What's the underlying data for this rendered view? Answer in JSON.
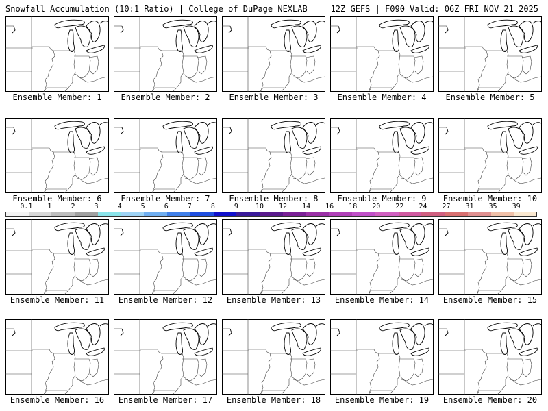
{
  "header": {
    "title": "Snowfall Accumulation (10:1 Ratio) | College of DuPage NEXLAB",
    "run_info": "12Z GEFS | F090 Valid: 06Z FRI NOV 21 2025"
  },
  "members": [
    {
      "label": "Ensemble Member: 1"
    },
    {
      "label": "Ensemble Member: 2"
    },
    {
      "label": "Ensemble Member: 3"
    },
    {
      "label": "Ensemble Member: 4"
    },
    {
      "label": "Ensemble Member: 5"
    },
    {
      "label": "Ensemble Member: 6"
    },
    {
      "label": "Ensemble Member: 7"
    },
    {
      "label": "Ensemble Member: 8"
    },
    {
      "label": "Ensemble Member: 9"
    },
    {
      "label": "Ensemble Member: 10"
    },
    {
      "label": "Ensemble Member: 11"
    },
    {
      "label": "Ensemble Member: 12"
    },
    {
      "label": "Ensemble Member: 13"
    },
    {
      "label": "Ensemble Member: 14"
    },
    {
      "label": "Ensemble Member: 15"
    },
    {
      "label": "Ensemble Member: 16"
    },
    {
      "label": "Ensemble Member: 17"
    },
    {
      "label": "Ensemble Member: 18"
    },
    {
      "label": "Ensemble Member: 19"
    },
    {
      "label": "Ensemble Member: 20"
    }
  ],
  "colorbar": {
    "labels": [
      "0.1",
      "1",
      "2",
      "3",
      "4",
      "5",
      "6",
      "7",
      "8",
      "9",
      "10",
      "12",
      "14",
      "16",
      "18",
      "20",
      "22",
      "24",
      "27",
      "31",
      "35",
      "39"
    ],
    "colors": [
      "#f4f4f4",
      "#d8d8d8",
      "#bdbdbd",
      "#a0a0a0",
      "#8ae4ea",
      "#9ed3f5",
      "#6faef0",
      "#3f7fe8",
      "#1f4fe0",
      "#1010cc",
      "#3a1a9a",
      "#5a1a8c",
      "#7a2096",
      "#9a30a6",
      "#b040b8",
      "#c050c8",
      "#d060c0",
      "#d05aa0",
      "#d06080",
      "#d87070",
      "#e09090",
      "#f0c0a8",
      "#fae8d0"
    ]
  }
}
